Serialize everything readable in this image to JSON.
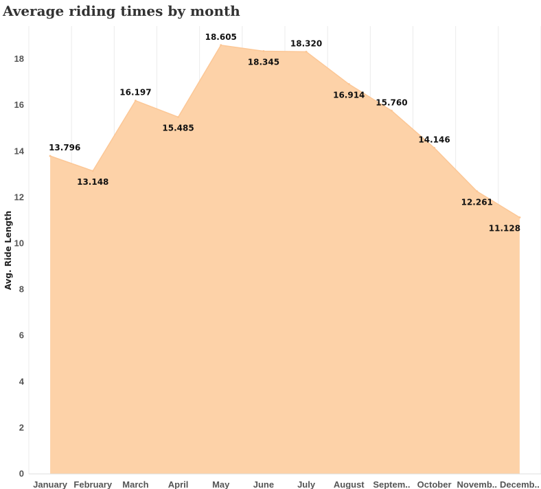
{
  "chart_data": {
    "type": "area",
    "title": "Average riding times by month",
    "ylabel": "Avg. Ride Length",
    "xlabel": "",
    "categories": [
      "January",
      "February",
      "March",
      "April",
      "May",
      "June",
      "July",
      "August",
      "Septem..",
      "October",
      "Novemb..",
      "Decemb.."
    ],
    "values": [
      13.796,
      13.148,
      16.197,
      15.485,
      18.605,
      18.345,
      18.32,
      16.914,
      15.76,
      14.146,
      12.261,
      11.128
    ],
    "value_labels": [
      "13.796",
      "13.148",
      "16.197",
      "15.485",
      "18.605",
      "18.345",
      "18.320",
      "16.914",
      "15.760",
      "14.146",
      "12.261",
      "11.128"
    ],
    "ylim": [
      0,
      19.5
    ],
    "yticks": [
      0,
      2,
      4,
      6,
      8,
      10,
      12,
      14,
      16,
      18
    ],
    "grid": "vertical",
    "fill_color": "#fdd2a8",
    "line_color": "#fcc796"
  }
}
